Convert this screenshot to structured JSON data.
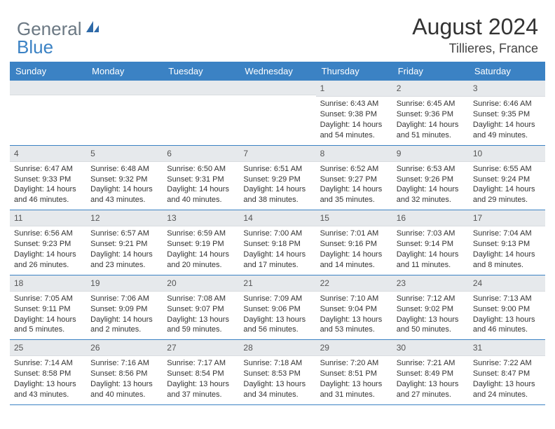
{
  "logo": {
    "general": "General",
    "blue": "Blue"
  },
  "title": "August 2024",
  "location": "Tillieres, France",
  "weekdays": [
    "Sunday",
    "Monday",
    "Tuesday",
    "Wednesday",
    "Thursday",
    "Friday",
    "Saturday"
  ],
  "colors": {
    "header_bg": "#3b82c4",
    "header_text": "#ffffff",
    "daynum_bg": "#e6e9ec",
    "text": "#333333",
    "border": "#3b82c4"
  },
  "typography": {
    "title_fontsize": 32,
    "location_fontsize": 18,
    "weekday_fontsize": 13,
    "daynum_fontsize": 12,
    "body_fontsize": 11
  },
  "weeks": [
    [
      null,
      null,
      null,
      null,
      {
        "n": "1",
        "sunrise": "6:43 AM",
        "sunset": "9:38 PM",
        "dl1": "Daylight: 14 hours",
        "dl2": "and 54 minutes."
      },
      {
        "n": "2",
        "sunrise": "6:45 AM",
        "sunset": "9:36 PM",
        "dl1": "Daylight: 14 hours",
        "dl2": "and 51 minutes."
      },
      {
        "n": "3",
        "sunrise": "6:46 AM",
        "sunset": "9:35 PM",
        "dl1": "Daylight: 14 hours",
        "dl2": "and 49 minutes."
      }
    ],
    [
      {
        "n": "4",
        "sunrise": "6:47 AM",
        "sunset": "9:33 PM",
        "dl1": "Daylight: 14 hours",
        "dl2": "and 46 minutes."
      },
      {
        "n": "5",
        "sunrise": "6:48 AM",
        "sunset": "9:32 PM",
        "dl1": "Daylight: 14 hours",
        "dl2": "and 43 minutes."
      },
      {
        "n": "6",
        "sunrise": "6:50 AM",
        "sunset": "9:31 PM",
        "dl1": "Daylight: 14 hours",
        "dl2": "and 40 minutes."
      },
      {
        "n": "7",
        "sunrise": "6:51 AM",
        "sunset": "9:29 PM",
        "dl1": "Daylight: 14 hours",
        "dl2": "and 38 minutes."
      },
      {
        "n": "8",
        "sunrise": "6:52 AM",
        "sunset": "9:27 PM",
        "dl1": "Daylight: 14 hours",
        "dl2": "and 35 minutes."
      },
      {
        "n": "9",
        "sunrise": "6:53 AM",
        "sunset": "9:26 PM",
        "dl1": "Daylight: 14 hours",
        "dl2": "and 32 minutes."
      },
      {
        "n": "10",
        "sunrise": "6:55 AM",
        "sunset": "9:24 PM",
        "dl1": "Daylight: 14 hours",
        "dl2": "and 29 minutes."
      }
    ],
    [
      {
        "n": "11",
        "sunrise": "6:56 AM",
        "sunset": "9:23 PM",
        "dl1": "Daylight: 14 hours",
        "dl2": "and 26 minutes."
      },
      {
        "n": "12",
        "sunrise": "6:57 AM",
        "sunset": "9:21 PM",
        "dl1": "Daylight: 14 hours",
        "dl2": "and 23 minutes."
      },
      {
        "n": "13",
        "sunrise": "6:59 AM",
        "sunset": "9:19 PM",
        "dl1": "Daylight: 14 hours",
        "dl2": "and 20 minutes."
      },
      {
        "n": "14",
        "sunrise": "7:00 AM",
        "sunset": "9:18 PM",
        "dl1": "Daylight: 14 hours",
        "dl2": "and 17 minutes."
      },
      {
        "n": "15",
        "sunrise": "7:01 AM",
        "sunset": "9:16 PM",
        "dl1": "Daylight: 14 hours",
        "dl2": "and 14 minutes."
      },
      {
        "n": "16",
        "sunrise": "7:03 AM",
        "sunset": "9:14 PM",
        "dl1": "Daylight: 14 hours",
        "dl2": "and 11 minutes."
      },
      {
        "n": "17",
        "sunrise": "7:04 AM",
        "sunset": "9:13 PM",
        "dl1": "Daylight: 14 hours",
        "dl2": "and 8 minutes."
      }
    ],
    [
      {
        "n": "18",
        "sunrise": "7:05 AM",
        "sunset": "9:11 PM",
        "dl1": "Daylight: 14 hours",
        "dl2": "and 5 minutes."
      },
      {
        "n": "19",
        "sunrise": "7:06 AM",
        "sunset": "9:09 PM",
        "dl1": "Daylight: 14 hours",
        "dl2": "and 2 minutes."
      },
      {
        "n": "20",
        "sunrise": "7:08 AM",
        "sunset": "9:07 PM",
        "dl1": "Daylight: 13 hours",
        "dl2": "and 59 minutes."
      },
      {
        "n": "21",
        "sunrise": "7:09 AM",
        "sunset": "9:06 PM",
        "dl1": "Daylight: 13 hours",
        "dl2": "and 56 minutes."
      },
      {
        "n": "22",
        "sunrise": "7:10 AM",
        "sunset": "9:04 PM",
        "dl1": "Daylight: 13 hours",
        "dl2": "and 53 minutes."
      },
      {
        "n": "23",
        "sunrise": "7:12 AM",
        "sunset": "9:02 PM",
        "dl1": "Daylight: 13 hours",
        "dl2": "and 50 minutes."
      },
      {
        "n": "24",
        "sunrise": "7:13 AM",
        "sunset": "9:00 PM",
        "dl1": "Daylight: 13 hours",
        "dl2": "and 46 minutes."
      }
    ],
    [
      {
        "n": "25",
        "sunrise": "7:14 AM",
        "sunset": "8:58 PM",
        "dl1": "Daylight: 13 hours",
        "dl2": "and 43 minutes."
      },
      {
        "n": "26",
        "sunrise": "7:16 AM",
        "sunset": "8:56 PM",
        "dl1": "Daylight: 13 hours",
        "dl2": "and 40 minutes."
      },
      {
        "n": "27",
        "sunrise": "7:17 AM",
        "sunset": "8:54 PM",
        "dl1": "Daylight: 13 hours",
        "dl2": "and 37 minutes."
      },
      {
        "n": "28",
        "sunrise": "7:18 AM",
        "sunset": "8:53 PM",
        "dl1": "Daylight: 13 hours",
        "dl2": "and 34 minutes."
      },
      {
        "n": "29",
        "sunrise": "7:20 AM",
        "sunset": "8:51 PM",
        "dl1": "Daylight: 13 hours",
        "dl2": "and 31 minutes."
      },
      {
        "n": "30",
        "sunrise": "7:21 AM",
        "sunset": "8:49 PM",
        "dl1": "Daylight: 13 hours",
        "dl2": "and 27 minutes."
      },
      {
        "n": "31",
        "sunrise": "7:22 AM",
        "sunset": "8:47 PM",
        "dl1": "Daylight: 13 hours",
        "dl2": "and 24 minutes."
      }
    ]
  ],
  "labels": {
    "sunrise": "Sunrise: ",
    "sunset": "Sunset: "
  }
}
